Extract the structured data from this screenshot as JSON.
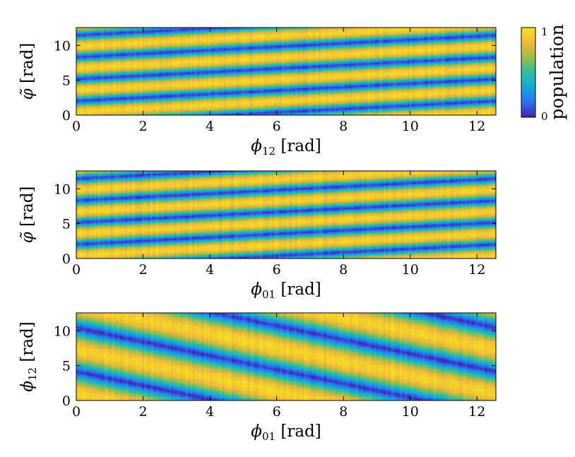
{
  "chart_data": [
    {
      "type": "heatmap",
      "panel": "top",
      "xlabel_symbol": "ϕ",
      "xlabel_sub": "12",
      "xlabel_unit": " [rad]",
      "ylabel_symbol": "φ̃",
      "ylabel_sub": "",
      "ylabel_unit": " [rad]",
      "xlim": [
        0,
        12.566
      ],
      "ylim": [
        0,
        12.566
      ],
      "xticks": [
        "0",
        "2",
        "4",
        "6",
        "8",
        "10",
        "12"
      ],
      "yticks": [
        "0",
        "5",
        "10"
      ],
      "pattern": {
        "relation": "y - x/4",
        "period": 3.1416,
        "dip_phase": 0.45,
        "slope_sign": 1
      },
      "value_range": [
        0,
        1
      ]
    },
    {
      "type": "heatmap",
      "panel": "middle",
      "xlabel_symbol": "ϕ",
      "xlabel_sub": "01",
      "xlabel_unit": " [rad]",
      "ylabel_symbol": "φ̃",
      "ylabel_sub": "",
      "ylabel_unit": " [rad]",
      "xlim": [
        0,
        12.566
      ],
      "ylim": [
        0,
        12.566
      ],
      "xticks": [
        "0",
        "2",
        "4",
        "6",
        "8",
        "10",
        "12"
      ],
      "yticks": [
        "0",
        "5",
        "10"
      ],
      "pattern": {
        "relation": "y - x/4",
        "period": 3.1416,
        "dip_phase": 0.45,
        "slope_sign": 1
      },
      "value_range": [
        0,
        1
      ]
    },
    {
      "type": "heatmap",
      "panel": "bottom",
      "xlabel_symbol": "ϕ",
      "xlabel_sub": "01",
      "xlabel_unit": " [rad]",
      "ylabel_symbol": "ϕ",
      "ylabel_sub": "12",
      "ylabel_unit": " [rad]",
      "xlim": [
        0,
        12.566
      ],
      "ylim": [
        0,
        12.566
      ],
      "xticks": [
        "0",
        "2",
        "4",
        "6",
        "8",
        "10",
        "12"
      ],
      "yticks": [
        "0",
        "5",
        "10"
      ],
      "pattern": {
        "relation": "y + x",
        "period": 6.2832,
        "dip_phase": 1.0,
        "slope_sign": -1
      },
      "value_range": [
        0,
        1
      ]
    }
  ],
  "colorbar": {
    "label": "population",
    "min_label": "0",
    "max_label": "1",
    "colors": [
      "#3e26a8",
      "#2d6ff7",
      "#12a8d8",
      "#2ebe9f",
      "#9abd4a",
      "#f3b93a",
      "#f5e121"
    ]
  }
}
